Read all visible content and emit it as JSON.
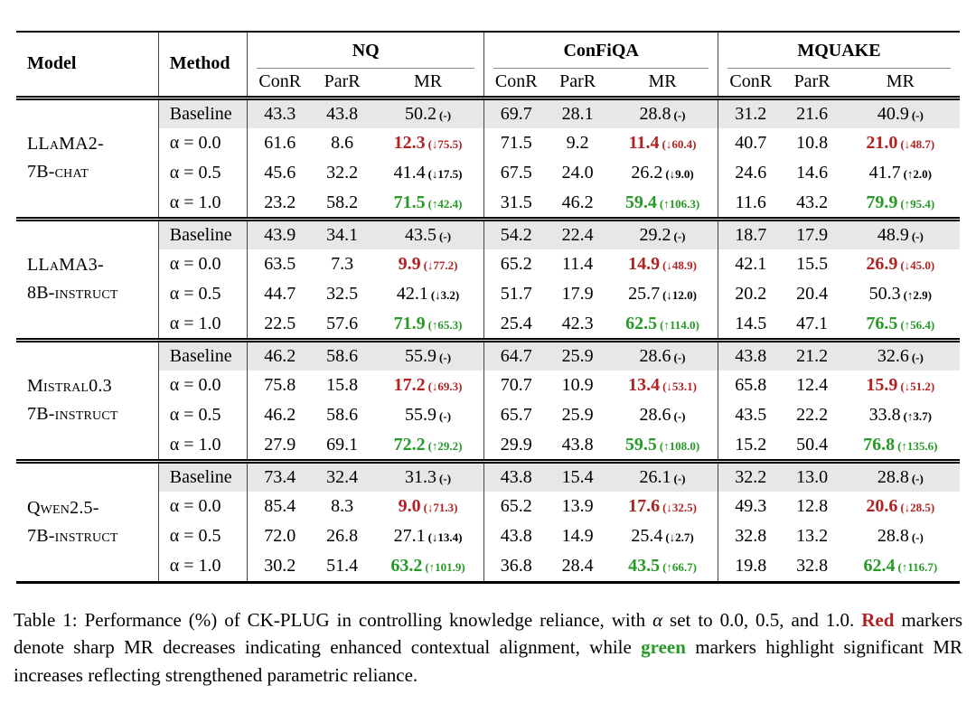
{
  "colors": {
    "red": "#b22222",
    "green": "#269926",
    "shade": "#e7e7e7",
    "rule": "#444444"
  },
  "table": {
    "model_header": "Model",
    "method_header": "Method",
    "groups": [
      "NQ",
      "ConFiQA",
      "MQUAKE"
    ],
    "sub_headers": [
      "ConR",
      "ParR",
      "MR"
    ],
    "blocks": [
      {
        "model_line1": "LLaMA2-",
        "model_line2": "7B-chat",
        "rows": [
          {
            "method": "Baseline",
            "shaded": true,
            "nq": {
              "conr": "43.3",
              "parr": "43.8",
              "mr": "50.2",
              "ann": "(-)",
              "tone": "plain"
            },
            "cf": {
              "conr": "69.7",
              "parr": "28.1",
              "mr": "28.8",
              "ann": "(-)",
              "tone": "plain"
            },
            "mq": {
              "conr": "31.2",
              "parr": "21.6",
              "mr": "40.9",
              "ann": "(-)",
              "tone": "plain"
            }
          },
          {
            "method": "α = 0.0",
            "shaded": false,
            "nq": {
              "conr": "61.6",
              "parr": "8.6",
              "mr": "12.3",
              "ann": "(↓75.5)",
              "tone": "red"
            },
            "cf": {
              "conr": "71.5",
              "parr": "9.2",
              "mr": "11.4",
              "ann": "(↓60.4)",
              "tone": "red"
            },
            "mq": {
              "conr": "40.7",
              "parr": "10.8",
              "mr": "21.0",
              "ann": "(↓48.7)",
              "tone": "red"
            }
          },
          {
            "method": "α = 0.5",
            "shaded": false,
            "nq": {
              "conr": "45.6",
              "parr": "32.2",
              "mr": "41.4",
              "ann": "(↓17.5)",
              "tone": "plain"
            },
            "cf": {
              "conr": "67.5",
              "parr": "24.0",
              "mr": "26.2",
              "ann": "(↓9.0)",
              "tone": "plain"
            },
            "mq": {
              "conr": "24.6",
              "parr": "14.6",
              "mr": "41.7",
              "ann": "(↑2.0)",
              "tone": "plain"
            }
          },
          {
            "method": "α = 1.0",
            "shaded": false,
            "nq": {
              "conr": "23.2",
              "parr": "58.2",
              "mr": "71.5",
              "ann": "(↑42.4)",
              "tone": "green"
            },
            "cf": {
              "conr": "31.5",
              "parr": "46.2",
              "mr": "59.4",
              "ann": "(↑106.3)",
              "tone": "green"
            },
            "mq": {
              "conr": "11.6",
              "parr": "43.2",
              "mr": "79.9",
              "ann": "(↑95.4)",
              "tone": "green"
            }
          }
        ]
      },
      {
        "model_line1": "LLaMA3-",
        "model_line2": "8B-instruct",
        "rows": [
          {
            "method": "Baseline",
            "shaded": true,
            "nq": {
              "conr": "43.9",
              "parr": "34.1",
              "mr": "43.5",
              "ann": "(-)",
              "tone": "plain"
            },
            "cf": {
              "conr": "54.2",
              "parr": "22.4",
              "mr": "29.2",
              "ann": "(-)",
              "tone": "plain"
            },
            "mq": {
              "conr": "18.7",
              "parr": "17.9",
              "mr": "48.9",
              "ann": "(-)",
              "tone": "plain"
            }
          },
          {
            "method": "α = 0.0",
            "shaded": false,
            "nq": {
              "conr": "63.5",
              "parr": "7.3",
              "mr": "9.9",
              "ann": "(↓77.2)",
              "tone": "red"
            },
            "cf": {
              "conr": "65.2",
              "parr": "11.4",
              "mr": "14.9",
              "ann": "(↓48.9)",
              "tone": "red"
            },
            "mq": {
              "conr": "42.1",
              "parr": "15.5",
              "mr": "26.9",
              "ann": "(↓45.0)",
              "tone": "red"
            }
          },
          {
            "method": "α = 0.5",
            "shaded": false,
            "nq": {
              "conr": "44.7",
              "parr": "32.5",
              "mr": "42.1",
              "ann": "(↓3.2)",
              "tone": "plain"
            },
            "cf": {
              "conr": "51.7",
              "parr": "17.9",
              "mr": "25.7",
              "ann": "(↓12.0)",
              "tone": "plain"
            },
            "mq": {
              "conr": "20.2",
              "parr": "20.4",
              "mr": "50.3",
              "ann": "(↑2.9)",
              "tone": "plain"
            }
          },
          {
            "method": "α = 1.0",
            "shaded": false,
            "nq": {
              "conr": "22.5",
              "parr": "57.6",
              "mr": "71.9",
              "ann": "(↑65.3)",
              "tone": "green"
            },
            "cf": {
              "conr": "25.4",
              "parr": "42.3",
              "mr": "62.5",
              "ann": "(↑114.0)",
              "tone": "green"
            },
            "mq": {
              "conr": "14.5",
              "parr": "47.1",
              "mr": "76.5",
              "ann": "(↑56.4)",
              "tone": "green"
            }
          }
        ]
      },
      {
        "model_line1": "Mistral0.3",
        "model_line2": "7B-instruct",
        "rows": [
          {
            "method": "Baseline",
            "shaded": true,
            "nq": {
              "conr": "46.2",
              "parr": "58.6",
              "mr": "55.9",
              "ann": "(-)",
              "tone": "plain"
            },
            "cf": {
              "conr": "64.7",
              "parr": "25.9",
              "mr": "28.6",
              "ann": "(-)",
              "tone": "plain"
            },
            "mq": {
              "conr": "43.8",
              "parr": "21.2",
              "mr": "32.6",
              "ann": "(-)",
              "tone": "plain"
            }
          },
          {
            "method": "α = 0.0",
            "shaded": false,
            "nq": {
              "conr": "75.8",
              "parr": "15.8",
              "mr": "17.2",
              "ann": "(↓69.3)",
              "tone": "red"
            },
            "cf": {
              "conr": "70.7",
              "parr": "10.9",
              "mr": "13.4",
              "ann": "(↓53.1)",
              "tone": "red"
            },
            "mq": {
              "conr": "65.8",
              "parr": "12.4",
              "mr": "15.9",
              "ann": "(↓51.2)",
              "tone": "red"
            }
          },
          {
            "method": "α = 0.5",
            "shaded": false,
            "nq": {
              "conr": "46.2",
              "parr": "58.6",
              "mr": "55.9",
              "ann": "(-)",
              "tone": "plain"
            },
            "cf": {
              "conr": "65.7",
              "parr": "25.9",
              "mr": "28.6",
              "ann": "(-)",
              "tone": "plain"
            },
            "mq": {
              "conr": "43.5",
              "parr": "22.2",
              "mr": "33.8",
              "ann": "(↑3.7)",
              "tone": "plain"
            }
          },
          {
            "method": "α = 1.0",
            "shaded": false,
            "nq": {
              "conr": "27.9",
              "parr": "69.1",
              "mr": "72.2",
              "ann": "(↑29.2)",
              "tone": "green"
            },
            "cf": {
              "conr": "29.9",
              "parr": "43.8",
              "mr": "59.5",
              "ann": "(↑108.0)",
              "tone": "green"
            },
            "mq": {
              "conr": "15.2",
              "parr": "50.4",
              "mr": "76.8",
              "ann": "(↑135.6)",
              "tone": "green"
            }
          }
        ]
      },
      {
        "model_line1": "Qwen2.5-",
        "model_line2": "7B-instruct",
        "rows": [
          {
            "method": "Baseline",
            "shaded": true,
            "nq": {
              "conr": "73.4",
              "parr": "32.4",
              "mr": "31.3",
              "ann": "(-)",
              "tone": "plain"
            },
            "cf": {
              "conr": "43.8",
              "parr": "15.4",
              "mr": "26.1",
              "ann": "(-)",
              "tone": "plain"
            },
            "mq": {
              "conr": "32.2",
              "parr": "13.0",
              "mr": "28.8",
              "ann": "(-)",
              "tone": "plain"
            }
          },
          {
            "method": "α = 0.0",
            "shaded": false,
            "nq": {
              "conr": "85.4",
              "parr": "8.3",
              "mr": "9.0",
              "ann": "(↓71.3)",
              "tone": "red"
            },
            "cf": {
              "conr": "65.2",
              "parr": "13.9",
              "mr": "17.6",
              "ann": "(↓32.5)",
              "tone": "red"
            },
            "mq": {
              "conr": "49.3",
              "parr": "12.8",
              "mr": "20.6",
              "ann": "(↓28.5)",
              "tone": "red"
            }
          },
          {
            "method": "α = 0.5",
            "shaded": false,
            "nq": {
              "conr": "72.0",
              "parr": "26.8",
              "mr": "27.1",
              "ann": "(↓13.4)",
              "tone": "plain"
            },
            "cf": {
              "conr": "43.8",
              "parr": "14.9",
              "mr": "25.4",
              "ann": "(↓2.7)",
              "tone": "plain"
            },
            "mq": {
              "conr": "32.8",
              "parr": "13.2",
              "mr": "28.8",
              "ann": "(-)",
              "tone": "plain"
            }
          },
          {
            "method": "α = 1.0",
            "shaded": false,
            "nq": {
              "conr": "30.2",
              "parr": "51.4",
              "mr": "63.2",
              "ann": "(↑101.9)",
              "tone": "green"
            },
            "cf": {
              "conr": "36.8",
              "parr": "28.4",
              "mr": "43.5",
              "ann": "(↑66.7)",
              "tone": "green"
            },
            "mq": {
              "conr": "19.8",
              "parr": "32.8",
              "mr": "62.4",
              "ann": "(↑116.7)",
              "tone": "green"
            }
          }
        ]
      }
    ]
  },
  "caption": {
    "parts": [
      {
        "style": "plain",
        "text": "Table 1: Performance (%) of CK-PLUG in controlling knowledge reliance, with "
      },
      {
        "style": "italic",
        "text": "α"
      },
      {
        "style": "plain",
        "text": " set to 0.0, 0.5, and 1.0. "
      },
      {
        "style": "red",
        "text": "Red"
      },
      {
        "style": "plain",
        "text": " markers denote sharp MR decreases indicating enhanced contextual alignment, while "
      },
      {
        "style": "green",
        "text": "green"
      },
      {
        "style": "plain",
        "text": " markers highlight significant MR increases reflecting strengthened parametric reliance."
      }
    ]
  }
}
